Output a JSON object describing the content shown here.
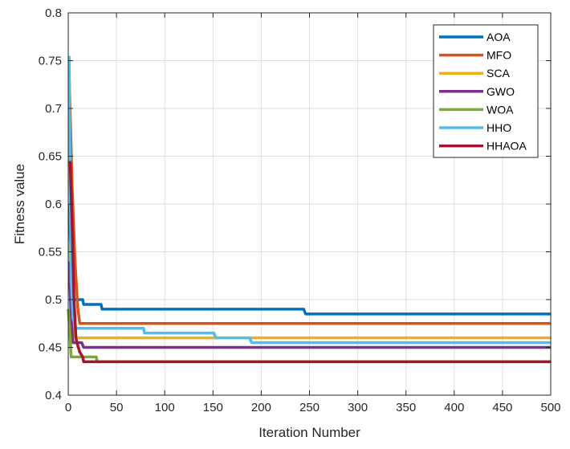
{
  "chart_data": {
    "type": "line",
    "title": "",
    "xlabel": "Iteration Number",
    "ylabel": "Fitness value",
    "xlim": [
      0,
      500
    ],
    "ylim": [
      0.4,
      0.8
    ],
    "xticks": [
      0,
      50,
      100,
      150,
      200,
      250,
      300,
      350,
      400,
      450,
      500
    ],
    "yticks": [
      0.4,
      0.45,
      0.5,
      0.55,
      0.6,
      0.65,
      0.7,
      0.75,
      0.8
    ],
    "xtick_labels": [
      "0",
      "50",
      "100",
      "150",
      "200",
      "250",
      "300",
      "350",
      "400",
      "450",
      "500"
    ],
    "ytick_labels": [
      "0.4",
      "0.45",
      "0.5",
      "0.55",
      "0.6",
      "0.65",
      "0.7",
      "0.75",
      "0.8"
    ],
    "grid": true,
    "legend_position": "upper right",
    "series": [
      {
        "name": "AOA",
        "color": "#0072BD",
        "points": [
          [
            1,
            0.6
          ],
          [
            3,
            0.53
          ],
          [
            5,
            0.5
          ],
          [
            15,
            0.5
          ],
          [
            16,
            0.495
          ],
          [
            34,
            0.495
          ],
          [
            35,
            0.49
          ],
          [
            244,
            0.49
          ],
          [
            246,
            0.485
          ],
          [
            500,
            0.485
          ]
        ]
      },
      {
        "name": "MFO",
        "color": "#D95319",
        "points": [
          [
            1,
            0.735
          ],
          [
            4,
            0.62
          ],
          [
            7,
            0.54
          ],
          [
            10,
            0.49
          ],
          [
            12,
            0.475
          ],
          [
            500,
            0.475
          ]
        ]
      },
      {
        "name": "SCA",
        "color": "#EDB120",
        "points": [
          [
            1,
            0.56
          ],
          [
            3,
            0.5
          ],
          [
            5,
            0.47
          ],
          [
            8,
            0.46
          ],
          [
            500,
            0.46
          ]
        ]
      },
      {
        "name": "GWO",
        "color": "#7E2F8E",
        "points": [
          [
            1,
            0.54
          ],
          [
            3,
            0.48
          ],
          [
            5,
            0.455
          ],
          [
            14,
            0.455
          ],
          [
            16,
            0.45
          ],
          [
            500,
            0.45
          ]
        ]
      },
      {
        "name": "WOA",
        "color": "#77AC30",
        "points": [
          [
            0,
            0.49
          ],
          [
            2,
            0.46
          ],
          [
            3,
            0.44
          ],
          [
            29,
            0.44
          ],
          [
            30,
            0.435
          ],
          [
            500,
            0.435
          ]
        ]
      },
      {
        "name": "HHO",
        "color": "#4DBEEE",
        "points": [
          [
            1,
            0.755
          ],
          [
            2,
            0.62
          ],
          [
            3,
            0.52
          ],
          [
            5,
            0.48
          ],
          [
            8,
            0.47
          ],
          [
            78,
            0.47
          ],
          [
            79,
            0.465
          ],
          [
            151,
            0.465
          ],
          [
            153,
            0.46
          ],
          [
            188,
            0.46
          ],
          [
            190,
            0.455
          ],
          [
            500,
            0.455
          ]
        ]
      },
      {
        "name": "HHAOA",
        "color": "#A2142F",
        "points": [
          [
            2,
            0.645
          ],
          [
            4,
            0.58
          ],
          [
            6,
            0.5
          ],
          [
            8,
            0.46
          ],
          [
            9,
            0.455
          ],
          [
            12,
            0.445
          ],
          [
            15,
            0.44
          ],
          [
            16,
            0.435
          ],
          [
            500,
            0.435
          ]
        ]
      }
    ]
  },
  "legend": {
    "items": [
      {
        "label": "AOA",
        "color": "#0072BD"
      },
      {
        "label": "MFO",
        "color": "#D95319"
      },
      {
        "label": "SCA",
        "color": "#EDB120"
      },
      {
        "label": "GWO",
        "color": "#7E2F8E"
      },
      {
        "label": "WOA",
        "color": "#77AC30"
      },
      {
        "label": "HHO",
        "color": "#4DBEEE"
      },
      {
        "label": "HHAOA",
        "color": "#A2142F"
      }
    ]
  }
}
